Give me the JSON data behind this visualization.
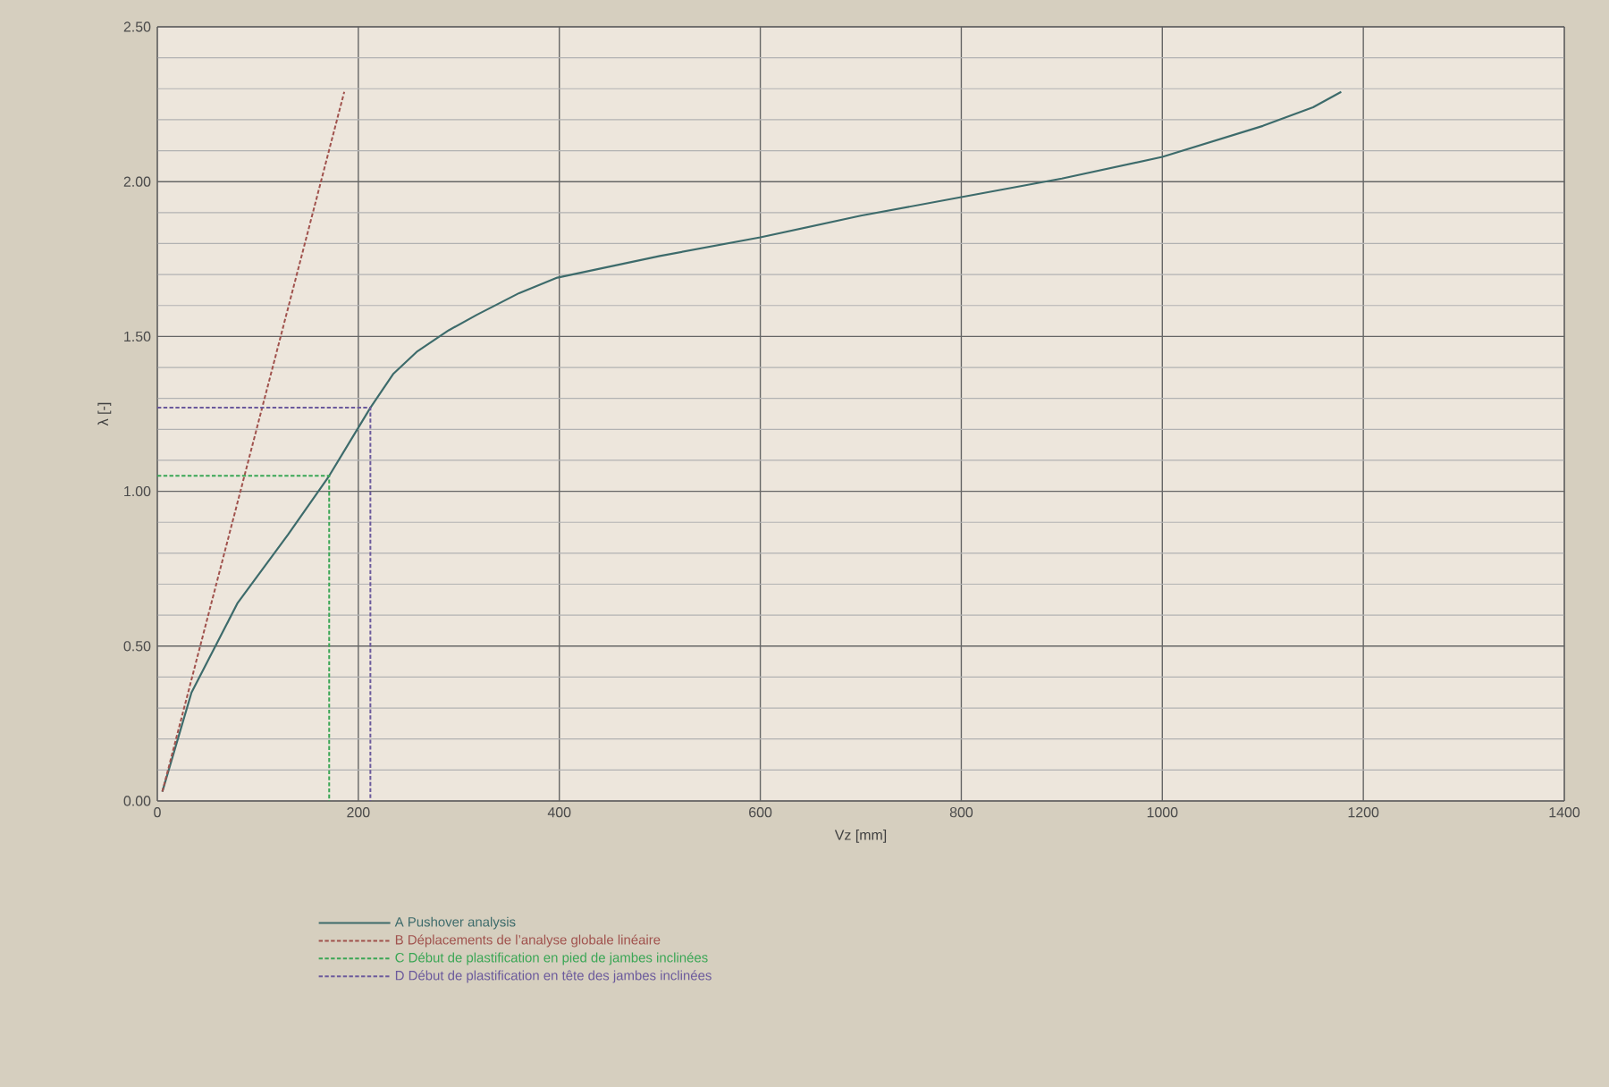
{
  "chart_data": {
    "type": "line",
    "xlabel": "Vz [mm]",
    "ylabel": "λ [-]",
    "xlim": [
      0,
      1400
    ],
    "ylim": [
      0,
      2.5
    ],
    "xticks": [
      0,
      200,
      400,
      600,
      800,
      1000,
      1200,
      1400
    ],
    "yticks": [
      {
        "value": 0,
        "label": "0.00"
      },
      {
        "value": 0.5,
        "label": "0.50"
      },
      {
        "value": 1,
        "label": "1.00"
      },
      {
        "value": 1.5,
        "label": "1.50"
      },
      {
        "value": 2,
        "label": "2.00"
      },
      {
        "value": 2.5,
        "label": "2.50"
      }
    ],
    "grid": true,
    "legend": "bottom",
    "marker": "none",
    "series": [
      {
        "name": "A   Pushover analysis",
        "color": "#3d6b6b",
        "line_style": "solid",
        "x": [
          5,
          34,
          80,
          130,
          171,
          212,
          235,
          258,
          290,
          318,
          360,
          398,
          500,
          600,
          700,
          800,
          900,
          1000,
          1100,
          1150,
          1178
        ],
        "values": [
          0.03,
          0.35,
          0.64,
          0.86,
          1.05,
          1.27,
          1.38,
          1.45,
          1.52,
          1.57,
          1.64,
          1.69,
          1.76,
          1.82,
          1.89,
          1.95,
          2.01,
          2.08,
          2.18,
          2.24,
          2.29
        ]
      },
      {
        "name": "B   Déplacements de l’analyse globale linéaire",
        "color": "#a0524d",
        "line_style": "dashed",
        "x": [
          5,
          186
        ],
        "values": [
          0.03,
          2.29
        ]
      },
      {
        "name": "C   Début de plastification en pied de jambes inclinées",
        "color": "#3aa655",
        "line_style": "dashed",
        "x": [
          0,
          171,
          171
        ],
        "values": [
          1.05,
          1.05,
          0
        ]
      },
      {
        "name": "D   Début de plastification en tête des jambes inclinées",
        "color": "#6b5a9c",
        "line_style": "dashed",
        "x": [
          0,
          212,
          212
        ],
        "values": [
          1.27,
          1.27,
          0
        ]
      }
    ]
  }
}
